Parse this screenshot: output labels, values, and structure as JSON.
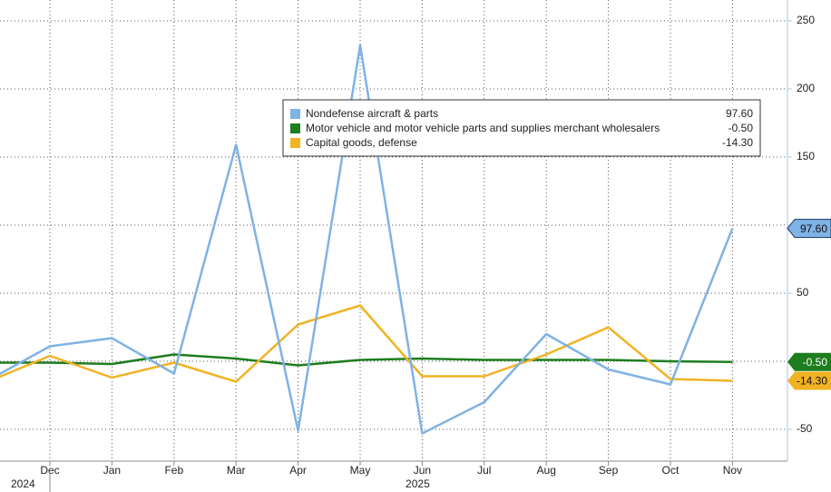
{
  "chart_data": {
    "type": "line",
    "categories": [
      null,
      "Dec",
      "Jan",
      "Feb",
      "Mar",
      "Apr",
      "May",
      "Jun",
      "Jul",
      "Aug",
      "Sep",
      "Oct",
      "Nov"
    ],
    "year_labels": [
      "2024",
      "2025"
    ],
    "series": [
      {
        "name": "Nondefense aircraft & parts",
        "color": "#7fb2e5",
        "values": [
          -14,
          11,
          17,
          -9,
          159,
          -51,
          232,
          -53,
          -30,
          20,
          -6,
          -17,
          97.6
        ],
        "value_label": "97.60"
      },
      {
        "name": "Motor vehicle and motor vehicle parts and supplies merchant wholesalers",
        "color": "#1e7d1e",
        "values": [
          -1,
          -1,
          -2,
          5,
          2,
          -3,
          1,
          2,
          1,
          1,
          1,
          0,
          -0.5
        ],
        "value_label": "-0.50"
      },
      {
        "name": "Capital goods, defense",
        "color": "#f0b323",
        "values": [
          -15,
          4,
          -12,
          -1,
          -15,
          27,
          41,
          -11,
          -11,
          5,
          25,
          -13,
          -14.3
        ],
        "value_label": "-14.30"
      }
    ],
    "ylim": [
      -73.3,
      265.3
    ],
    "yticks": [
      -50,
      0,
      50,
      100,
      150,
      200,
      250
    ],
    "grid": true
  }
}
